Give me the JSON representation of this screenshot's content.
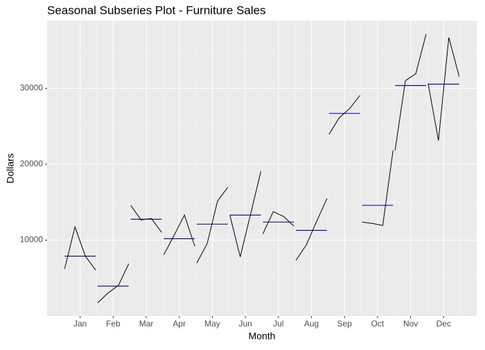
{
  "chart_data": {
    "type": "subseries",
    "title": "Seasonal Subseries Plot - Furniture Sales",
    "x_label": "Month",
    "y_label": "Dollars",
    "categories": [
      "Jan",
      "Feb",
      "Mar",
      "Apr",
      "May",
      "Jun",
      "Jul",
      "Aug",
      "Sep",
      "Oct",
      "Nov",
      "Dec"
    ],
    "values": [
      [
        6239,
        11743,
        7890,
        6055
      ],
      [
        1743,
        3028,
        4037,
        6881
      ],
      [
        14587,
        12661,
        12844,
        11009
      ],
      [
        8073,
        10642,
        13303,
        9174
      ],
      [
        6972,
        9541,
        15138,
        16972
      ],
      [
        13303,
        7798,
        13394,
        19083
      ],
      [
        10826,
        13761,
        13119,
        11835
      ],
      [
        7339,
        9358,
        12477,
        15505
      ],
      [
        23945,
        26147,
        27339,
        29083
      ],
      [
        12385,
        12202,
        11927,
        21835
      ],
      [
        21835,
        31009,
        31927,
        37156
      ],
      [
        30642,
        23119,
        36697,
        31560
      ]
    ],
    "means": [
      7890,
      3945,
      12752,
      10183,
      12110,
      13303,
      12385,
      11284,
      26697,
      14587,
      30367,
      30550
    ],
    "color": "#000000",
    "mean_color": "#00008b",
    "ylim": [
      0,
      38900
    ],
    "yticks": [
      10000,
      20000,
      30000
    ],
    "grid": true
  }
}
